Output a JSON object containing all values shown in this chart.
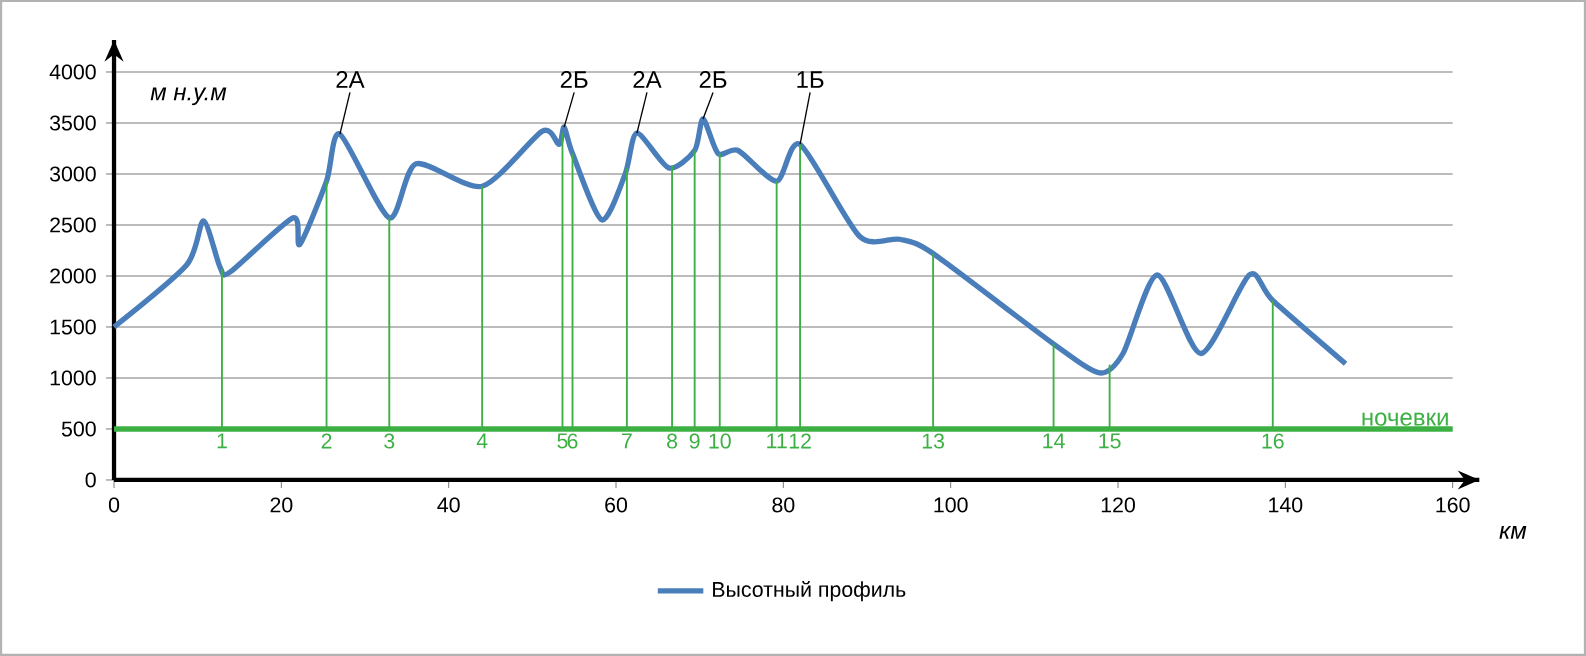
{
  "chart_data": {
    "type": "line",
    "xlabel": "км",
    "ylabel": "м н.у.м",
    "legend": "bottom",
    "grid": "y",
    "line_style": "solid",
    "marker": "none",
    "xlim": [
      0,
      160
    ],
    "xticks": [
      0,
      20,
      40,
      60,
      80,
      100,
      120,
      140,
      160
    ],
    "ylim": [
      0,
      4000
    ],
    "yticks": [
      0,
      500,
      1000,
      1500,
      2000,
      2500,
      3000,
      3500,
      4000
    ],
    "series": [
      {
        "name": "Высотный профиль",
        "color": "#4a7ebb",
        "x": [
          0,
          8.7,
          10.7,
          12.7,
          13.9,
          21.4,
          22.2,
          25.4,
          27,
          32.9,
          36.1,
          44,
          51.2,
          53.2,
          53.8,
          54.8,
          58.3,
          61.1,
          62.5,
          66.3,
          69.4,
          70.4,
          72.2,
          74.6,
          79.2,
          82,
          89.1,
          93.9,
          97.9,
          112.2,
          117.8,
          120.6,
          124.7,
          129.9,
          135.7,
          138.5,
          147.2
        ],
        "values": [
          1500,
          2110,
          2540,
          2080,
          2040,
          2570,
          2310,
          2930,
          3390,
          2570,
          3100,
          2880,
          3420,
          3290,
          3460,
          3200,
          2550,
          3000,
          3400,
          3060,
          3230,
          3540,
          3200,
          3230,
          2930,
          3290,
          2390,
          2360,
          2220,
          1340,
          1050,
          1240,
          2010,
          1240,
          2010,
          1760,
          1140
        ]
      }
    ],
    "ref_lines": [
      {
        "axis": "y",
        "value": 500,
        "label": "ночевки",
        "color": "#3cb043"
      }
    ],
    "annotations": [
      {
        "text": "2А",
        "x": 27,
        "y": 3390
      },
      {
        "text": "2Б",
        "x": 53.8,
        "y": 3460
      },
      {
        "text": "2А",
        "x": 62.5,
        "y": 3400
      },
      {
        "text": "2Б",
        "x": 70.4,
        "y": 3540
      },
      {
        "text": "1Б",
        "x": 82,
        "y": 3290
      },
      {
        "text": "1",
        "x": 12.9,
        "y": 500
      },
      {
        "text": "2",
        "x": 25.4,
        "y": 500
      },
      {
        "text": "3",
        "x": 32.9,
        "y": 500
      },
      {
        "text": "4",
        "x": 44,
        "y": 500
      },
      {
        "text": "5",
        "x": 53.6,
        "y": 500
      },
      {
        "text": "6",
        "x": 54.8,
        "y": 500
      },
      {
        "text": "7",
        "x": 61.3,
        "y": 500
      },
      {
        "text": "8",
        "x": 66.7,
        "y": 500
      },
      {
        "text": "9",
        "x": 69.4,
        "y": 500
      },
      {
        "text": "10",
        "x": 72.4,
        "y": 500
      },
      {
        "text": "11",
        "x": 79.2,
        "y": 500
      },
      {
        "text": "12",
        "x": 82,
        "y": 500
      },
      {
        "text": "13",
        "x": 97.9,
        "y": 500
      },
      {
        "text": "14",
        "x": 112.3,
        "y": 500
      },
      {
        "text": "15",
        "x": 119,
        "y": 500
      },
      {
        "text": "16",
        "x": 138.5,
        "y": 500
      }
    ]
  }
}
